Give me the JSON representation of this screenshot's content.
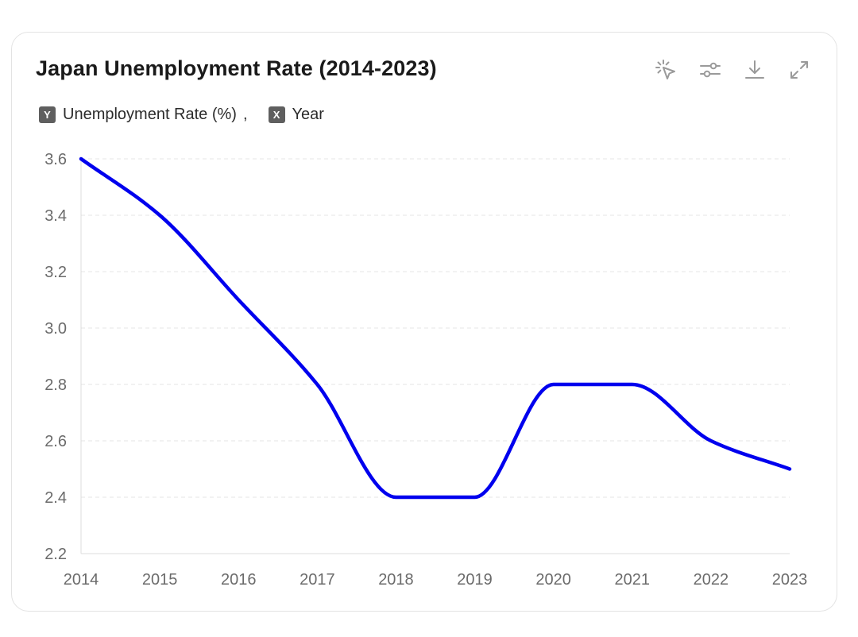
{
  "chart_data": {
    "type": "line",
    "title": "Japan Unemployment Rate (2014-2023)",
    "legend": [
      {
        "badge": "Y",
        "label": "Unemployment Rate (%)"
      },
      {
        "badge": "X",
        "label": "Year"
      }
    ],
    "legend_separator": ",",
    "x": [
      "2014",
      "2015",
      "2016",
      "2017",
      "2018",
      "2019",
      "2020",
      "2021",
      "2022",
      "2023"
    ],
    "series": [
      {
        "values": [
          3.6,
          3.4,
          3.1,
          2.8,
          2.4,
          2.4,
          2.8,
          2.8,
          2.6,
          2.5
        ],
        "color": "#0000ee"
      }
    ],
    "yticks": [
      "2.2",
      "2.4",
      "2.6",
      "2.8",
      "3.0",
      "3.2",
      "3.4",
      "3.6"
    ],
    "ylim": [
      2.2,
      3.6
    ],
    "grid": true,
    "smooth": true
  },
  "toolbar": {
    "icons": [
      "interaction-icon",
      "filter-settings-icon",
      "download-icon",
      "fullscreen-icon"
    ]
  },
  "colors": {
    "line": "#0000ee",
    "grid": "#e6e6e6",
    "axis": "#dcdcdc",
    "tick_text": "#6b6b6b",
    "icon": "#9a9a9a"
  }
}
